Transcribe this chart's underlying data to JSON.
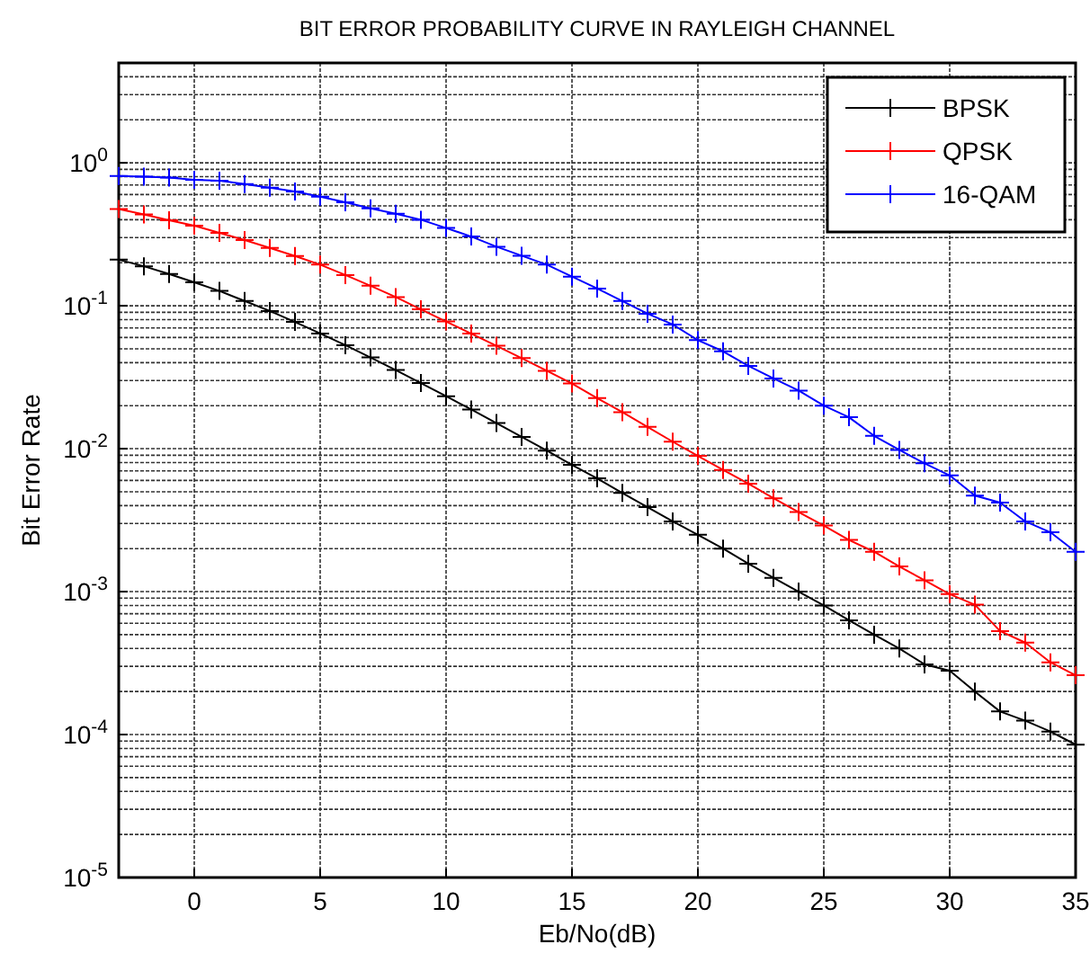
{
  "chart_data": {
    "type": "line",
    "title": "BIT ERROR PROBABILITY CURVE IN RAYLEIGH CHANNEL",
    "xlabel": "Eb/No(dB)",
    "ylabel": "Bit Error Rate",
    "x": [
      -3,
      -2,
      -1,
      0,
      1,
      2,
      3,
      4,
      5,
      6,
      7,
      8,
      9,
      10,
      11,
      12,
      13,
      14,
      15,
      16,
      17,
      18,
      19,
      20,
      21,
      22,
      23,
      24,
      25,
      26,
      27,
      28,
      29,
      30,
      31,
      32,
      33,
      34,
      35
    ],
    "series": [
      {
        "name": "BPSK",
        "color": "#000000",
        "values": [
          0.21,
          0.189,
          0.167,
          0.146,
          0.127,
          0.108,
          0.0919,
          0.0771,
          0.064,
          0.053,
          0.0435,
          0.0355,
          0.0288,
          0.0233,
          0.0188,
          0.0151,
          0.0121,
          0.0097,
          0.0077,
          0.0062,
          0.0049,
          0.0039,
          0.0031,
          0.0025,
          0.002,
          0.00157,
          0.00125,
          0.001,
          0.0008,
          0.00063,
          0.0005,
          0.0004,
          0.00031,
          0.00028,
          0.0002,
          0.000145,
          0.000125,
          0.000105,
          8.5e-05
        ]
      },
      {
        "name": "QPSK",
        "color": "#ff0000",
        "values": [
          0.475,
          0.435,
          0.397,
          0.363,
          0.324,
          0.288,
          0.254,
          0.223,
          0.194,
          0.164,
          0.138,
          0.115,
          0.0944,
          0.0776,
          0.0638,
          0.0525,
          0.043,
          0.0351,
          0.0286,
          0.0226,
          0.018,
          0.0142,
          0.0112,
          0.0089,
          0.0071,
          0.0057,
          0.0045,
          0.0036,
          0.0029,
          0.0023,
          0.0019,
          0.0015,
          0.0012,
          0.00096,
          0.00081,
          0.00053,
          0.00044,
          0.00032,
          0.00026
        ]
      },
      {
        "name": "16-QAM",
        "color": "#0000ff",
        "values": [
          0.81,
          0.8,
          0.79,
          0.76,
          0.75,
          0.71,
          0.67,
          0.63,
          0.58,
          0.53,
          0.48,
          0.44,
          0.4,
          0.35,
          0.305,
          0.259,
          0.224,
          0.194,
          0.16,
          0.132,
          0.108,
          0.088,
          0.074,
          0.0575,
          0.048,
          0.038,
          0.031,
          0.0255,
          0.02,
          0.0166,
          0.0123,
          0.0098,
          0.0079,
          0.0065,
          0.0047,
          0.0042,
          0.0031,
          0.0026,
          0.0019
        ]
      }
    ],
    "xlim": [
      -3,
      35
    ],
    "xticks": [
      0,
      5,
      10,
      15,
      20,
      25,
      30,
      35
    ],
    "ylim": [
      1e-05,
      5
    ],
    "yticks": [
      {
        "value": 1e-05,
        "label": "10$^{-5}$"
      },
      {
        "value": 0.0001,
        "label": "10$^{-4}$"
      },
      {
        "value": 0.001,
        "label": "10$^{-3}$"
      },
      {
        "value": 0.01,
        "label": "10$^{-2}$"
      },
      {
        "value": 0.1,
        "label": "10$^{-1}$"
      },
      {
        "value": 1,
        "label": "10$^{0}$"
      }
    ],
    "log": "y",
    "grid": true,
    "legend": "top right",
    "marker": "cross",
    "line_style": "solid"
  }
}
